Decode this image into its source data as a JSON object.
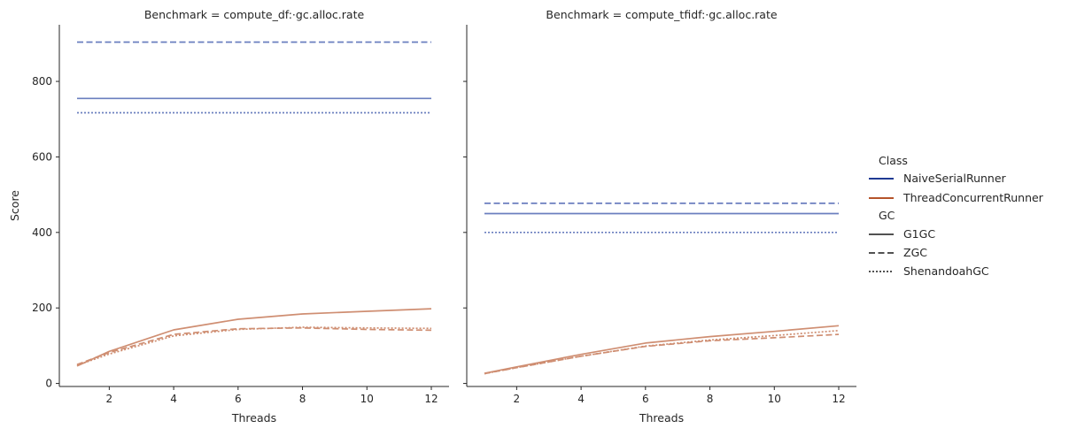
{
  "chart_data": [
    {
      "type": "line",
      "title": "Benchmark = compute_df:·gc.alloc.rate",
      "xlabel": "Threads",
      "ylabel": "Score",
      "xlim": [
        0.45,
        12.55
      ],
      "ylim": [
        -8,
        950
      ],
      "xticks": [
        2,
        4,
        6,
        8,
        10,
        12
      ],
      "yticks": [
        0,
        200,
        400,
        600,
        800
      ],
      "grid": false,
      "series": [
        {
          "class": "NaiveSerialRunner",
          "gc": "G1GC",
          "x": [
            1,
            12
          ],
          "y": [
            755,
            755
          ]
        },
        {
          "class": "NaiveSerialRunner",
          "gc": "ZGC",
          "x": [
            1,
            12
          ],
          "y": [
            904,
            904
          ]
        },
        {
          "class": "NaiveSerialRunner",
          "gc": "ShenandoahGC",
          "x": [
            1,
            12
          ],
          "y": [
            717,
            717
          ]
        },
        {
          "class": "ThreadConcurrentRunner",
          "gc": "G1GC",
          "x": [
            1,
            2,
            4,
            6,
            8,
            10,
            12
          ],
          "y": [
            46,
            85,
            142,
            170,
            184,
            191,
            198
          ]
        },
        {
          "class": "ThreadConcurrentRunner",
          "gc": "ZGC",
          "x": [
            1,
            2,
            4,
            6,
            8,
            10,
            12
          ],
          "y": [
            50,
            82,
            130,
            145,
            147,
            143,
            141
          ]
        },
        {
          "class": "ThreadConcurrentRunner",
          "gc": "ShenandoahGC",
          "x": [
            1,
            2,
            4,
            6,
            8,
            10,
            12
          ],
          "y": [
            48,
            78,
            126,
            143,
            149,
            147,
            146
          ]
        }
      ]
    },
    {
      "type": "line",
      "title": "Benchmark = compute_tfidf:·gc.alloc.rate",
      "xlabel": "Threads",
      "ylabel": "",
      "xlim": [
        0.45,
        12.55
      ],
      "ylim": [
        -8,
        950
      ],
      "xticks": [
        2,
        4,
        6,
        8,
        10,
        12
      ],
      "yticks": [
        0,
        200,
        400,
        600,
        800
      ],
      "grid": false,
      "series": [
        {
          "class": "NaiveSerialRunner",
          "gc": "G1GC",
          "x": [
            1,
            12
          ],
          "y": [
            450,
            450
          ]
        },
        {
          "class": "NaiveSerialRunner",
          "gc": "ZGC",
          "x": [
            1,
            12
          ],
          "y": [
            477,
            477
          ]
        },
        {
          "class": "NaiveSerialRunner",
          "gc": "ShenandoahGC",
          "x": [
            1,
            12
          ],
          "y": [
            400,
            400
          ]
        },
        {
          "class": "ThreadConcurrentRunner",
          "gc": "G1GC",
          "x": [
            1,
            2,
            4,
            6,
            8,
            10,
            12
          ],
          "y": [
            27,
            44,
            77,
            107,
            124,
            138,
            153
          ]
        },
        {
          "class": "ThreadConcurrentRunner",
          "gc": "ZGC",
          "x": [
            1,
            2,
            4,
            6,
            8,
            10,
            12
          ],
          "y": [
            26,
            42,
            72,
            98,
            113,
            121,
            130
          ]
        },
        {
          "class": "ThreadConcurrentRunner",
          "gc": "ShenandoahGC",
          "x": [
            1,
            2,
            4,
            6,
            8,
            10,
            12
          ],
          "y": [
            26,
            42,
            72,
            99,
            115,
            127,
            140
          ]
        }
      ]
    }
  ],
  "legend": {
    "placement": "right",
    "class_title": "Class",
    "class_items": [
      {
        "label": "NaiveSerialRunner",
        "color": "#1f3a93"
      },
      {
        "label": "ThreadConcurrentRunner",
        "color": "#b5532a"
      }
    ],
    "gc_title": "GC",
    "gc_items": [
      {
        "label": "G1GC",
        "style": "solid"
      },
      {
        "label": "ZGC",
        "style": "dashed"
      },
      {
        "label": "ShenandoahGC",
        "style": "dotted"
      }
    ]
  },
  "colors": {
    "NaiveSerialRunner_line": "#6b7fbf",
    "ThreadConcurrentRunner_line": "#cf8e72",
    "legend_NaiveSerialRunner": "#1f3a93",
    "legend_ThreadConcurrentRunner": "#b5532a",
    "gc_key": "#3a3a3a"
  }
}
